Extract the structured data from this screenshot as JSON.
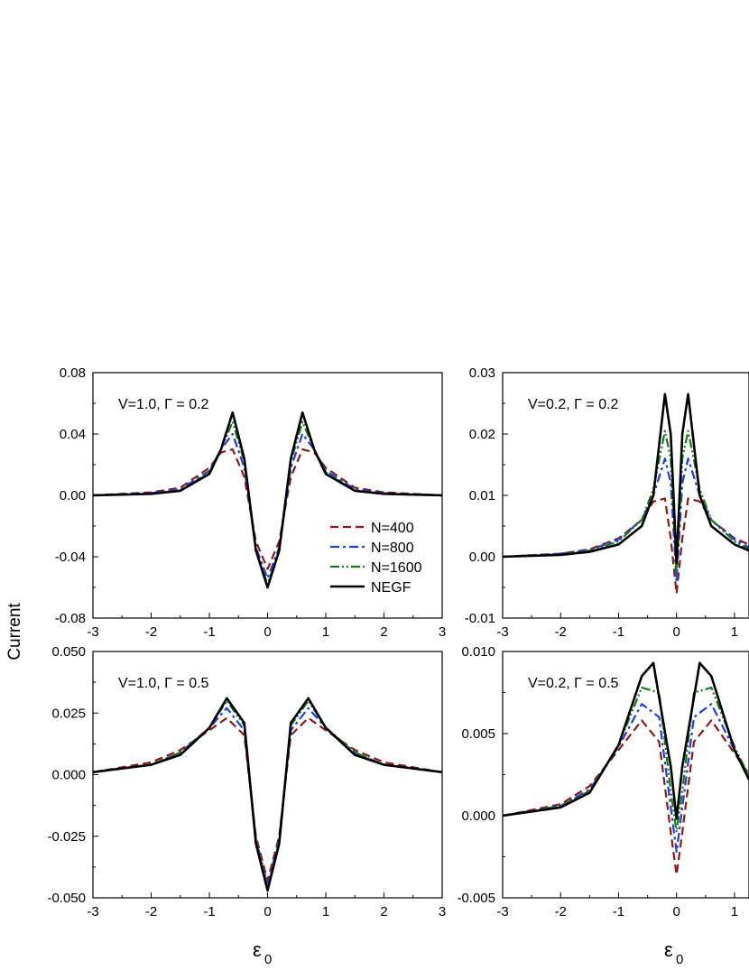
{
  "figure": {
    "ylabel": "Current",
    "xlabel_main": "ε",
    "xlabel_sub": "0"
  },
  "colors": {
    "N=400": "#8b1a1a",
    "N=800": "#1f3fe0",
    "N=1600": "#1a7a1a",
    "NEGF": "#000000"
  },
  "legend": {
    "placement": "center-right of top-left panel",
    "entries": [
      {
        "label": "N=400",
        "style": "dash"
      },
      {
        "label": "N=800",
        "style": "dashdot"
      },
      {
        "label": "N=1600",
        "style": "dashdotdot"
      },
      {
        "label": "NEGF",
        "style": "solid"
      }
    ]
  },
  "chart_data": [
    {
      "type": "line",
      "annotation": "V=1.0, Γ = 0.2",
      "xlim": [
        -3,
        3
      ],
      "ylim": [
        -0.08,
        0.08
      ],
      "xticks": [
        "-3",
        "-2",
        "-1",
        "0",
        "1",
        "2",
        "3"
      ],
      "yticks": [
        "-0.08",
        "-0.04",
        "0.00",
        "0.04",
        "0.08"
      ],
      "series": [
        {
          "name": "N=400",
          "x": [
            -3.0,
            -2.0,
            -1.5,
            -1.0,
            -0.8,
            -0.6,
            -0.4,
            -0.2,
            0.0,
            0.2,
            0.4,
            0.6,
            0.8,
            1.0,
            1.5,
            2.0,
            3.0
          ],
          "y": [
            0.0,
            0.002,
            0.005,
            0.018,
            0.028,
            0.03,
            0.012,
            -0.03,
            -0.048,
            -0.03,
            0.012,
            0.03,
            0.028,
            0.018,
            0.005,
            0.002,
            0.0
          ]
        },
        {
          "name": "N=800",
          "x": [
            -3.0,
            -2.0,
            -1.5,
            -1.0,
            -0.8,
            -0.6,
            -0.4,
            -0.2,
            0.0,
            0.2,
            0.4,
            0.6,
            0.8,
            1.0,
            1.5,
            2.0,
            3.0
          ],
          "y": [
            0.0,
            0.0015,
            0.004,
            0.016,
            0.03,
            0.04,
            0.018,
            -0.034,
            -0.054,
            -0.034,
            0.018,
            0.04,
            0.03,
            0.016,
            0.004,
            0.0015,
            0.0
          ]
        },
        {
          "name": "N=1600",
          "x": [
            -3.0,
            -2.0,
            -1.5,
            -1.0,
            -0.8,
            -0.6,
            -0.4,
            -0.2,
            0.0,
            0.2,
            0.4,
            0.6,
            0.8,
            1.0,
            1.5,
            2.0,
            3.0
          ],
          "y": [
            0.0,
            0.001,
            0.003,
            0.015,
            0.03,
            0.048,
            0.022,
            -0.036,
            -0.058,
            -0.036,
            0.022,
            0.048,
            0.03,
            0.015,
            0.003,
            0.001,
            0.0
          ]
        },
        {
          "name": "NEGF",
          "x": [
            -3.0,
            -2.0,
            -1.5,
            -1.0,
            -0.8,
            -0.6,
            -0.4,
            -0.2,
            0.0,
            0.2,
            0.4,
            0.6,
            0.8,
            1.0,
            1.5,
            2.0,
            3.0
          ],
          "y": [
            0.0,
            0.001,
            0.003,
            0.014,
            0.03,
            0.054,
            0.024,
            -0.036,
            -0.06,
            -0.036,
            0.024,
            0.054,
            0.03,
            0.014,
            0.003,
            0.001,
            0.0
          ]
        }
      ]
    },
    {
      "type": "line",
      "annotation": "V=0.2, Γ = 0.2",
      "xlim": [
        -3,
        1.25
      ],
      "ylim": [
        -0.01,
        0.03
      ],
      "xticks": [
        "-3",
        "-2",
        "-1",
        "0",
        "1"
      ],
      "yticks": [
        "-0.01",
        "0.00",
        "0.01",
        "0.02",
        "0.03"
      ],
      "series": [
        {
          "name": "N=400",
          "x": [
            -3.0,
            -2.0,
            -1.5,
            -1.0,
            -0.6,
            -0.4,
            -0.2,
            -0.1,
            0.0,
            0.1,
            0.2,
            0.4,
            0.6,
            1.0,
            1.25
          ],
          "y": [
            0.0,
            0.0005,
            0.0012,
            0.003,
            0.006,
            0.009,
            0.0095,
            0.003,
            -0.006,
            0.003,
            0.0095,
            0.009,
            0.006,
            0.003,
            0.002
          ]
        },
        {
          "name": "N=800",
          "x": [
            -3.0,
            -2.0,
            -1.5,
            -1.0,
            -0.6,
            -0.4,
            -0.2,
            -0.1,
            0.0,
            0.1,
            0.2,
            0.4,
            0.6,
            1.0,
            1.25
          ],
          "y": [
            0.0,
            0.0005,
            0.0011,
            0.0028,
            0.006,
            0.01,
            0.016,
            0.012,
            -0.004,
            0.012,
            0.016,
            0.01,
            0.006,
            0.0028,
            0.0015
          ]
        },
        {
          "name": "N=1600",
          "x": [
            -3.0,
            -2.0,
            -1.5,
            -1.0,
            -0.6,
            -0.4,
            -0.2,
            -0.1,
            0.0,
            0.1,
            0.2,
            0.4,
            0.6,
            1.0,
            1.25
          ],
          "y": [
            0.0,
            0.0004,
            0.001,
            0.0025,
            0.006,
            0.011,
            0.0205,
            0.016,
            -0.003,
            0.016,
            0.0205,
            0.011,
            0.006,
            0.0025,
            0.0012
          ]
        },
        {
          "name": "NEGF",
          "x": [
            -3.0,
            -2.0,
            -1.5,
            -1.0,
            -0.6,
            -0.4,
            -0.2,
            -0.1,
            0.0,
            0.1,
            0.2,
            0.4,
            0.6,
            1.0,
            1.25
          ],
          "y": [
            0.0,
            0.0003,
            0.0008,
            0.002,
            0.005,
            0.01,
            0.0265,
            0.02,
            -0.001,
            0.02,
            0.0265,
            0.01,
            0.005,
            0.002,
            0.001
          ]
        }
      ]
    },
    {
      "type": "line",
      "annotation": "V=1.0, Γ = 0.5",
      "xlim": [
        -3,
        3
      ],
      "ylim": [
        -0.05,
        0.05
      ],
      "xticks": [
        "-3",
        "-2",
        "-1",
        "0",
        "1",
        "2",
        "3"
      ],
      "yticks": [
        "-0.050",
        "-0.025",
        "0.000",
        "0.025",
        "0.050"
      ],
      "series": [
        {
          "name": "N=400",
          "x": [
            -3.0,
            -2.0,
            -1.5,
            -1.0,
            -0.7,
            -0.4,
            -0.2,
            0.0,
            0.2,
            0.4,
            0.7,
            1.0,
            1.5,
            2.0,
            3.0
          ],
          "y": [
            0.001,
            0.005,
            0.01,
            0.018,
            0.023,
            0.016,
            -0.025,
            -0.043,
            -0.025,
            0.016,
            0.023,
            0.018,
            0.01,
            0.005,
            0.001
          ]
        },
        {
          "name": "N=800",
          "x": [
            -3.0,
            -2.0,
            -1.5,
            -1.0,
            -0.7,
            -0.4,
            -0.2,
            0.0,
            0.2,
            0.4,
            0.7,
            1.0,
            1.5,
            2.0,
            3.0
          ],
          "y": [
            0.001,
            0.004,
            0.009,
            0.019,
            0.027,
            0.018,
            -0.026,
            -0.045,
            -0.026,
            0.018,
            0.027,
            0.019,
            0.009,
            0.004,
            0.001
          ]
        },
        {
          "name": "N=1600",
          "x": [
            -3.0,
            -2.0,
            -1.5,
            -1.0,
            -0.7,
            -0.4,
            -0.2,
            0.0,
            0.2,
            0.4,
            0.7,
            1.0,
            1.5,
            2.0,
            3.0
          ],
          "y": [
            0.001,
            0.004,
            0.009,
            0.019,
            0.03,
            0.02,
            -0.027,
            -0.046,
            -0.027,
            0.02,
            0.03,
            0.019,
            0.009,
            0.004,
            0.001
          ]
        },
        {
          "name": "NEGF",
          "x": [
            -3.0,
            -2.0,
            -1.5,
            -1.0,
            -0.7,
            -0.4,
            -0.2,
            0.0,
            0.2,
            0.4,
            0.7,
            1.0,
            1.5,
            2.0,
            3.0
          ],
          "y": [
            0.001,
            0.004,
            0.008,
            0.019,
            0.031,
            0.021,
            -0.028,
            -0.047,
            -0.028,
            0.021,
            0.031,
            0.019,
            0.008,
            0.004,
            0.001
          ]
        }
      ]
    },
    {
      "type": "line",
      "annotation": "V=0.2, Γ = 0.5",
      "xlim": [
        -3,
        1.25
      ],
      "ylim": [
        -0.005,
        0.01
      ],
      "xticks": [
        "-3",
        "-2",
        "-1",
        "0",
        "1"
      ],
      "yticks": [
        "-0.005",
        "0.000",
        "0.005",
        "0.010"
      ],
      "series": [
        {
          "name": "N=400",
          "x": [
            -3.0,
            -2.0,
            -1.5,
            -1.0,
            -0.6,
            -0.3,
            -0.1,
            0.0,
            0.1,
            0.3,
            0.6,
            1.0,
            1.25
          ],
          "y": [
            0.0,
            0.0007,
            0.0018,
            0.004,
            0.0058,
            0.0045,
            -0.001,
            -0.0036,
            -0.001,
            0.0045,
            0.0058,
            0.0038,
            0.0025
          ]
        },
        {
          "name": "N=800",
          "x": [
            -3.0,
            -2.0,
            -1.5,
            -1.0,
            -0.6,
            -0.3,
            -0.1,
            0.0,
            0.1,
            0.3,
            0.6,
            1.0,
            1.25
          ],
          "y": [
            0.0,
            0.0006,
            0.0016,
            0.0042,
            0.0068,
            0.006,
            0.0005,
            -0.0022,
            0.0005,
            0.006,
            0.0068,
            0.004,
            0.0025
          ]
        },
        {
          "name": "N=1600",
          "x": [
            -3.0,
            -2.0,
            -1.5,
            -1.0,
            -0.6,
            -0.3,
            -0.1,
            0.0,
            0.1,
            0.3,
            0.6,
            1.0,
            1.25
          ],
          "y": [
            0.0,
            0.0006,
            0.0015,
            0.0043,
            0.0078,
            0.0075,
            0.0015,
            -0.001,
            0.0015,
            0.0075,
            0.0078,
            0.0042,
            0.0024
          ]
        },
        {
          "name": "NEGF",
          "x": [
            -3.0,
            -2.0,
            -1.5,
            -1.0,
            -0.6,
            -0.4,
            -0.1,
            0.0,
            0.1,
            0.4,
            0.6,
            1.0,
            1.25
          ],
          "y": [
            0.0,
            0.0005,
            0.0014,
            0.0043,
            0.0085,
            0.0093,
            0.003,
            -0.0002,
            0.003,
            0.0093,
            0.0085,
            0.004,
            0.0022
          ]
        }
      ]
    }
  ]
}
